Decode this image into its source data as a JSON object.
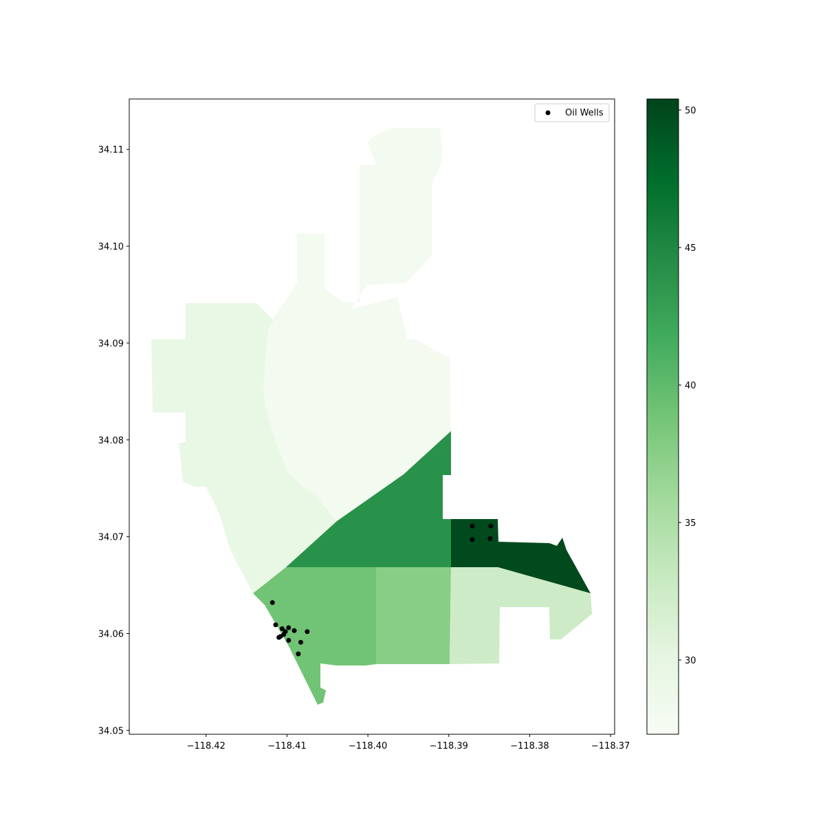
{
  "figure": {
    "legend": {
      "label": "Oil Wells"
    },
    "colorbar": {
      "colormap": "Greens",
      "range": [
        27.3,
        50.4
      ],
      "ticks": [
        30,
        35,
        40,
        45,
        50
      ]
    }
  },
  "chart_data": {
    "type": "choropleth",
    "xlim": [
      -118.4295,
      -118.3695
    ],
    "ylim": [
      34.0496,
      34.1152
    ],
    "xticks": [
      -118.42,
      -118.41,
      -118.4,
      -118.39,
      -118.38,
      -118.37
    ],
    "xtick_labels": [
      "−118.42",
      "−118.41",
      "−118.40",
      "−118.39",
      "−118.38",
      "−118.37"
    ],
    "yticks": [
      34.05,
      34.06,
      34.07,
      34.08,
      34.09,
      34.1,
      34.11
    ],
    "ytick_labels": [
      "34.05",
      "34.06",
      "34.07",
      "34.08",
      "34.09",
      "34.10",
      "34.11"
    ],
    "regions": [
      {
        "id": "north-central",
        "value": 28.0
      },
      {
        "id": "west",
        "value": 29.5
      },
      {
        "id": "central-diagonal",
        "value": 44.0
      },
      {
        "id": "east-block",
        "value": 50.0
      },
      {
        "id": "southwest",
        "value": 39.0
      },
      {
        "id": "south-central",
        "value": 37.5
      },
      {
        "id": "southeast",
        "value": 32.5
      }
    ],
    "series": [
      {
        "name": "Oil Wells",
        "type": "scatter",
        "points": [
          [
            -118.4118,
            34.0632
          ],
          [
            -118.4114,
            34.0609
          ],
          [
            -118.4106,
            34.0605
          ],
          [
            -118.4102,
            34.0602
          ],
          [
            -118.4104,
            34.0599
          ],
          [
            -118.4108,
            34.0597
          ],
          [
            -118.411,
            34.0596
          ],
          [
            -118.4098,
            34.0606
          ],
          [
            -118.4091,
            34.0603
          ],
          [
            -118.4075,
            34.0602
          ],
          [
            -118.4098,
            34.0593
          ],
          [
            -118.4083,
            34.0591
          ],
          [
            -118.4086,
            34.0579
          ],
          [
            -118.3871,
            34.0711
          ],
          [
            -118.3848,
            34.0711
          ],
          [
            -118.3871,
            34.0697
          ],
          [
            -118.3849,
            34.0698
          ]
        ]
      }
    ]
  }
}
